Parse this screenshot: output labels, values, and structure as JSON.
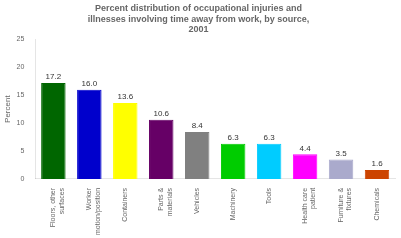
{
  "chart_data": {
    "type": "bar",
    "title": "Percent distribution of occupational injuries and\nillnesses involving time away from work, by source,\n2001",
    "ylabel": "Percent",
    "categories": [
      "Floors, other\nsurfaces",
      "Worker\nmotion/position",
      "Containers",
      "Parts &\nmaterials",
      "Vehicles",
      "Machinery",
      "Tools",
      "Health care\npatient",
      "Furniture &\nfixtures",
      "Chemicals"
    ],
    "values": [
      17.2,
      16.0,
      13.6,
      10.6,
      8.4,
      6.3,
      6.3,
      4.4,
      3.5,
      1.6
    ],
    "value_labels": [
      "17.2",
      "16.0",
      "13.6",
      "10.6",
      "8.4",
      "6.3",
      "6.3",
      "4.4",
      "3.5",
      "1.6"
    ],
    "colors": [
      "#006600",
      "#0000cc",
      "#ffff00",
      "#660066",
      "#808080",
      "#00cc00",
      "#00ccff",
      "#ff00ff",
      "#aaaacc",
      "#cc4400"
    ],
    "ylim": [
      0,
      25
    ],
    "yticks": [
      0,
      5,
      10,
      15,
      20,
      25
    ],
    "data_labels": true,
    "grid": false
  }
}
